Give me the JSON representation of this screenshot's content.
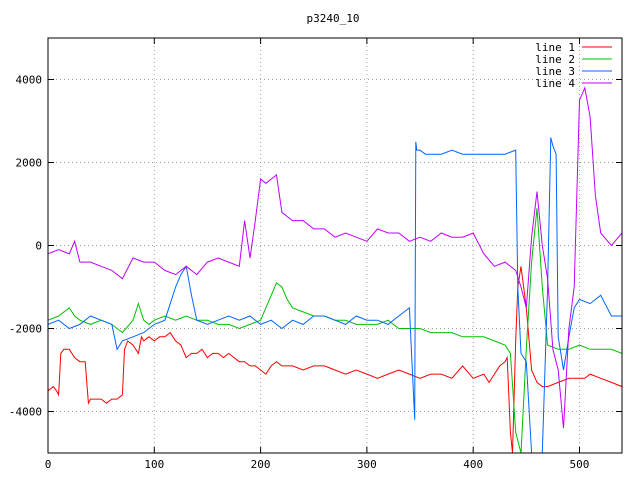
{
  "chart_data": {
    "type": "line",
    "title": "p3240_10",
    "xlabel": "",
    "ylabel": "",
    "xlim": [
      0,
      540
    ],
    "ylim": [
      -5000,
      5000
    ],
    "x_ticks": [
      0,
      100,
      200,
      300,
      400,
      500
    ],
    "y_ticks": [
      -4000,
      -2000,
      0,
      2000,
      4000
    ],
    "grid": true,
    "legend_position": "top-right",
    "series": [
      {
        "name": "line 1",
        "color": "#ff0000",
        "x": [
          0,
          5,
          8,
          10,
          12,
          15,
          20,
          25,
          30,
          35,
          38,
          40,
          45,
          50,
          55,
          60,
          65,
          70,
          72,
          75,
          80,
          85,
          88,
          90,
          95,
          100,
          105,
          110,
          115,
          120,
          125,
          130,
          135,
          140,
          145,
          150,
          155,
          160,
          165,
          170,
          175,
          180,
          185,
          190,
          195,
          200,
          205,
          210,
          215,
          220,
          230,
          240,
          250,
          260,
          270,
          280,
          290,
          300,
          310,
          320,
          330,
          340,
          350,
          360,
          370,
          380,
          390,
          400,
          410,
          415,
          420,
          425,
          430,
          432,
          435,
          437,
          440,
          442,
          445,
          450,
          455,
          460,
          465,
          470,
          480,
          490,
          500,
          505,
          510,
          520,
          530,
          540
        ],
        "y": [
          -3500,
          -3400,
          -3500,
          -3600,
          -2600,
          -2500,
          -2500,
          -2700,
          -2800,
          -2800,
          -3800,
          -3700,
          -3700,
          -3700,
          -3800,
          -3700,
          -3700,
          -3600,
          -2500,
          -2300,
          -2400,
          -2600,
          -2200,
          -2300,
          -2200,
          -2300,
          -2200,
          -2200,
          -2100,
          -2300,
          -2400,
          -2700,
          -2600,
          -2600,
          -2500,
          -2700,
          -2600,
          -2600,
          -2700,
          -2600,
          -2700,
          -2800,
          -2800,
          -2900,
          -2900,
          -3000,
          -3100,
          -2900,
          -2800,
          -2900,
          -2900,
          -3000,
          -2900,
          -2900,
          -3000,
          -3100,
          -3000,
          -3100,
          -3200,
          -3100,
          -3000,
          -3100,
          -3200,
          -3100,
          -3100,
          -3200,
          -2900,
          -3200,
          -3100,
          -3300,
          -3100,
          -2900,
          -2800,
          -2700,
          -4500,
          -5000,
          -2300,
          -1000,
          -500,
          -1500,
          -3000,
          -3300,
          -3400,
          -3400,
          -3300,
          -3200,
          -3200,
          -3200,
          -3100,
          -3200,
          -3300,
          -3400
        ]
      },
      {
        "name": "line 2",
        "color": "#00c000",
        "x": [
          0,
          10,
          20,
          25,
          30,
          40,
          50,
          60,
          70,
          80,
          85,
          90,
          95,
          100,
          110,
          120,
          130,
          140,
          150,
          160,
          170,
          180,
          190,
          200,
          205,
          210,
          215,
          220,
          225,
          230,
          240,
          250,
          260,
          270,
          280,
          290,
          300,
          310,
          320,
          330,
          340,
          350,
          360,
          370,
          380,
          390,
          400,
          410,
          420,
          430,
          435,
          440,
          445,
          450,
          455,
          460,
          465,
          470,
          480,
          490,
          500,
          510,
          520,
          530,
          540
        ],
        "y": [
          -1800,
          -1700,
          -1500,
          -1700,
          -1800,
          -1900,
          -1800,
          -1900,
          -2100,
          -1800,
          -1400,
          -1800,
          -1900,
          -1800,
          -1700,
          -1800,
          -1700,
          -1800,
          -1800,
          -1900,
          -1900,
          -2000,
          -1900,
          -1800,
          -1500,
          -1200,
          -900,
          -1000,
          -1300,
          -1500,
          -1600,
          -1700,
          -1700,
          -1800,
          -1800,
          -1900,
          -1900,
          -1900,
          -1800,
          -2000,
          -2000,
          -2000,
          -2100,
          -2100,
          -2100,
          -2200,
          -2200,
          -2200,
          -2300,
          -2400,
          -2600,
          -4500,
          -5000,
          -2500,
          -400,
          900,
          -1000,
          -2400,
          -2500,
          -2500,
          -2400,
          -2500,
          -2500,
          -2500,
          -2600
        ]
      },
      {
        "name": "line 3",
        "color": "#0066ff",
        "x": [
          0,
          10,
          20,
          30,
          40,
          50,
          60,
          65,
          70,
          80,
          90,
          100,
          110,
          120,
          125,
          130,
          135,
          140,
          150,
          160,
          170,
          180,
          190,
          200,
          210,
          220,
          230,
          240,
          250,
          260,
          270,
          280,
          290,
          300,
          310,
          320,
          330,
          340,
          345,
          346,
          347,
          350,
          355,
          360,
          370,
          380,
          390,
          400,
          410,
          420,
          430,
          440,
          442,
          445,
          450,
          455,
          460,
          465,
          470,
          473,
          475,
          478,
          480,
          485,
          490,
          495,
          500,
          510,
          520,
          530,
          540
        ],
        "y": [
          -1900,
          -1800,
          -2000,
          -1900,
          -1700,
          -1800,
          -1900,
          -2500,
          -2300,
          -2200,
          -2100,
          -1900,
          -1800,
          -1000,
          -700,
          -500,
          -1200,
          -1800,
          -1900,
          -1800,
          -1700,
          -1800,
          -1700,
          -1900,
          -1800,
          -2000,
          -1800,
          -1900,
          -1700,
          -1700,
          -1800,
          -1900,
          -1700,
          -1800,
          -1800,
          -1900,
          -1700,
          -1500,
          -4200,
          2500,
          2300,
          2300,
          2200,
          2200,
          2200,
          2300,
          2200,
          2200,
          2200,
          2200,
          2200,
          2300,
          -1000,
          -2600,
          -2800,
          -5000,
          -5000,
          -5000,
          -1000,
          2600,
          2400,
          2200,
          -2200,
          -3000,
          -2200,
          -1500,
          -1300,
          -1400,
          -1200,
          -1700,
          -1700
        ]
      },
      {
        "name": "line 4",
        "color": "#c000ff",
        "x": [
          0,
          10,
          20,
          25,
          30,
          40,
          50,
          60,
          70,
          80,
          90,
          100,
          110,
          120,
          130,
          140,
          150,
          160,
          170,
          180,
          185,
          190,
          195,
          200,
          205,
          210,
          215,
          220,
          225,
          230,
          240,
          250,
          260,
          270,
          280,
          290,
          300,
          310,
          320,
          330,
          340,
          350,
          360,
          370,
          380,
          390,
          400,
          410,
          420,
          430,
          440,
          445,
          450,
          455,
          460,
          465,
          470,
          475,
          480,
          485,
          490,
          495,
          500,
          505,
          510,
          515,
          520,
          530,
          540
        ],
        "y": [
          -200,
          -100,
          -200,
          100,
          -400,
          -400,
          -500,
          -600,
          -800,
          -300,
          -400,
          -400,
          -600,
          -700,
          -500,
          -700,
          -400,
          -300,
          -400,
          -500,
          600,
          -300,
          600,
          1600,
          1500,
          1600,
          1700,
          800,
          700,
          600,
          600,
          400,
          400,
          200,
          300,
          200,
          100,
          400,
          300,
          300,
          100,
          200,
          100,
          300,
          200,
          200,
          300,
          -200,
          -500,
          -400,
          -600,
          -1000,
          -1500,
          200,
          1300,
          0,
          -800,
          -2500,
          -3000,
          -4400,
          -2000,
          -1000,
          3500,
          3800,
          3100,
          1200,
          300,
          0,
          300
        ]
      }
    ]
  }
}
